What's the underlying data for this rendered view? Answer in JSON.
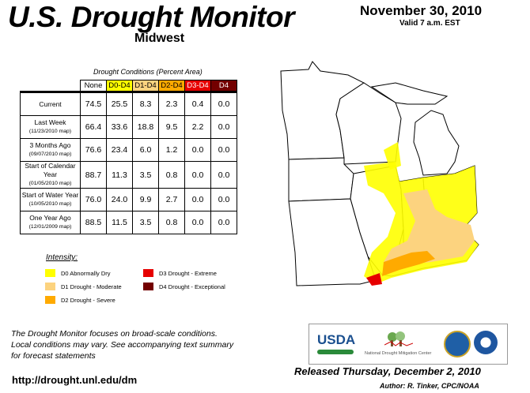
{
  "header": {
    "title": "U.S. Drought Monitor",
    "region": "Midwest",
    "date": "November 30, 2010",
    "valid": "Valid 7 a.m. EST"
  },
  "table": {
    "caption": "Drought Conditions (Percent Area)",
    "columns": [
      "None",
      "D0-D4",
      "D1-D4",
      "D2-D4",
      "D3-D4",
      "D4"
    ],
    "rows": [
      {
        "label": "Current",
        "sub": "",
        "values": [
          "74.5",
          "25.5",
          "8.3",
          "2.3",
          "0.4",
          "0.0"
        ]
      },
      {
        "label": "Last Week",
        "sub": "(11/23/2010 map)",
        "values": [
          "66.4",
          "33.6",
          "18.8",
          "9.5",
          "2.2",
          "0.0"
        ]
      },
      {
        "label": "3 Months Ago",
        "sub": "(09/07/2010 map)",
        "values": [
          "76.6",
          "23.4",
          "6.0",
          "1.2",
          "0.0",
          "0.0"
        ]
      },
      {
        "label": "Start of Calendar Year",
        "sub": "(01/05/2010 map)",
        "values": [
          "88.7",
          "11.3",
          "3.5",
          "0.8",
          "0.0",
          "0.0"
        ]
      },
      {
        "label": "Start of Water Year",
        "sub": "(10/05/2010 map)",
        "values": [
          "76.0",
          "24.0",
          "9.9",
          "2.7",
          "0.0",
          "0.0"
        ]
      },
      {
        "label": "One Year Ago",
        "sub": "(12/01/2009 map)",
        "values": [
          "88.5",
          "11.5",
          "3.5",
          "0.8",
          "0.0",
          "0.0"
        ]
      }
    ]
  },
  "legend": {
    "heading": "Intensity:",
    "items": [
      {
        "label": "D0 Abnormally Dry",
        "color": "#ffff00"
      },
      {
        "label": "D1 Drought - Moderate",
        "color": "#fcd37f"
      },
      {
        "label": "D2 Drought - Severe",
        "color": "#ffaa00"
      },
      {
        "label": "D3 Drought - Extreme",
        "color": "#e60000"
      },
      {
        "label": "D4 Drought - Exceptional",
        "color": "#730000"
      }
    ]
  },
  "footer": {
    "note_line1": "The Drought Monitor focuses on broad-scale conditions.",
    "note_line2": "Local conditions may vary. See accompanying text summary",
    "note_line3": "for forecast statements",
    "url": "http://drought.unl.edu/dm",
    "released": "Released Thursday, December 2, 2010",
    "author": "Author: R. Tinker, CPC/NOAA"
  },
  "logos": {
    "usda": "USDA",
    "ndmc": "National Drought Mitigation Center"
  }
}
